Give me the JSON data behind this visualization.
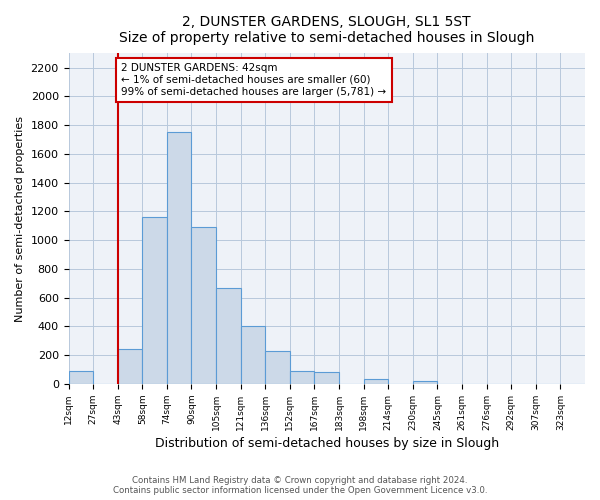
{
  "title": "2, DUNSTER GARDENS, SLOUGH, SL1 5ST",
  "subtitle": "Size of property relative to semi-detached houses in Slough",
  "xlabel": "Distribution of semi-detached houses by size in Slough",
  "ylabel": "Number of semi-detached properties",
  "bar_labels": [
    "12sqm",
    "27sqm",
    "43sqm",
    "58sqm",
    "74sqm",
    "90sqm",
    "105sqm",
    "121sqm",
    "136sqm",
    "152sqm",
    "167sqm",
    "183sqm",
    "198sqm",
    "214sqm",
    "230sqm",
    "245sqm",
    "261sqm",
    "276sqm",
    "292sqm",
    "307sqm",
    "323sqm"
  ],
  "bar_values": [
    90,
    0,
    240,
    1160,
    1750,
    1090,
    670,
    400,
    230,
    90,
    80,
    0,
    35,
    0,
    20,
    0,
    0,
    0,
    0,
    0,
    0
  ],
  "bar_color": "#ccd9e8",
  "bar_edge_color": "#5b9bd5",
  "highlight_line_color": "#cc0000",
  "highlight_line_index": 2,
  "annotation_title": "2 DUNSTER GARDENS: 42sqm",
  "annotation_line1": "← 1% of semi-detached houses are smaller (60)",
  "annotation_line2": "99% of semi-detached houses are larger (5,781) →",
  "annotation_box_color": "#ffffff",
  "annotation_box_edge": "#cc0000",
  "ylim": [
    0,
    2300
  ],
  "yticks": [
    0,
    200,
    400,
    600,
    800,
    1000,
    1200,
    1400,
    1600,
    1800,
    2000,
    2200
  ],
  "footer_line1": "Contains HM Land Registry data © Crown copyright and database right 2024.",
  "footer_line2": "Contains public sector information licensed under the Open Government Licence v3.0.",
  "bg_color": "#eef2f8",
  "grid_color": "#b8c8dc",
  "fig_bg_color": "#ffffff"
}
